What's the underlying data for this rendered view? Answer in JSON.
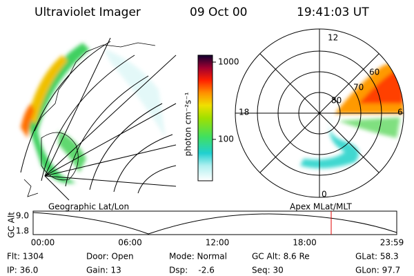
{
  "header": {
    "title": "Ultraviolet Imager",
    "date": "09 Oct 00",
    "time": "19:41:03 UT"
  },
  "colorbar": {
    "label": "photon cm⁻²s⁻¹",
    "ticks": [
      "1000",
      "100"
    ]
  },
  "polar": {
    "mlt_labels": [
      "12",
      "18",
      "6",
      "0"
    ],
    "lat_labels": [
      "80",
      "70",
      "60"
    ]
  },
  "strip": {
    "left_label": "Geographic Lat/Lon",
    "right_label": "Apex MLat/MLT",
    "y_title": "GC Alt",
    "y_ticks": [
      "9.0",
      "1.8"
    ],
    "x_ticks": [
      "00:00",
      "06:00",
      "12:00",
      "18:00",
      "23:59"
    ]
  },
  "status": {
    "rows": [
      [
        "Flt: 1304",
        "Door: Open",
        "Mode: Normal",
        "GC Alt: 8.6 Re",
        "GLat: 58.3"
      ],
      [
        "IP: 36.0",
        "Gain: 13",
        "Dsp:    -2.6",
        "Seq: 30",
        "GLon: 97.7"
      ]
    ]
  }
}
